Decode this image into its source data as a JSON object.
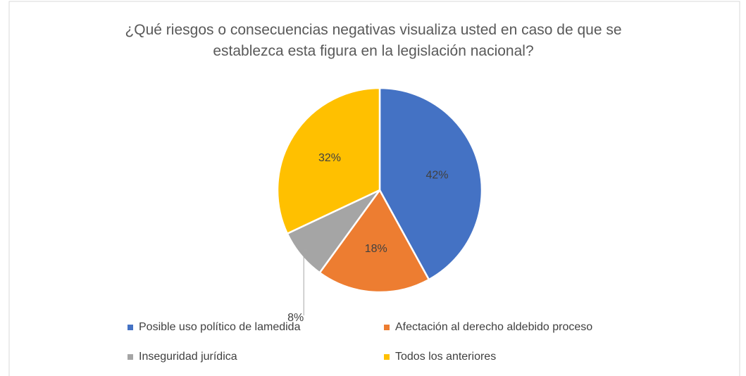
{
  "chart_data": {
    "type": "pie",
    "title": "¿Qué riesgos o consecuencias negativas visualiza usted en caso de que se establezca esta figura en la legislación nacional?",
    "categories": [
      "Posible uso político de lamedida",
      "Afectación al derecho aldebido proceso",
      "Inseguridad jurídica",
      "Todos los anteriores"
    ],
    "values": [
      42,
      18,
      8,
      32
    ],
    "value_labels": [
      "42%",
      "18%",
      "8%",
      "32%"
    ],
    "colors": [
      "#4472c4",
      "#ed7d31",
      "#a5a5a5",
      "#ffc000"
    ],
    "legend": "bottom"
  }
}
